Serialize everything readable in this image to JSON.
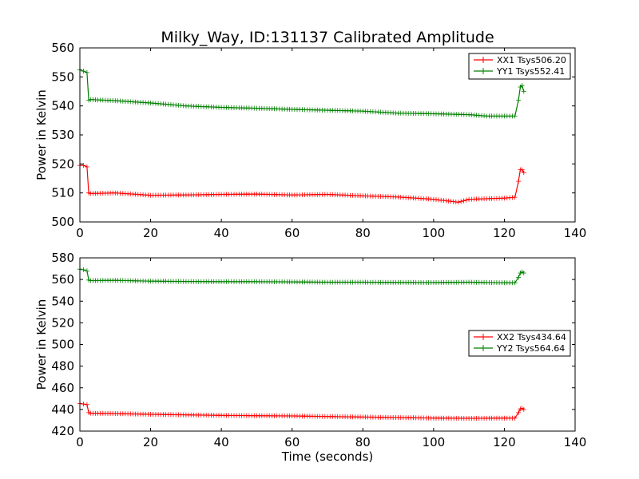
{
  "figure": {
    "title": "Milky_Way, ID:131137 Calibrated Amplitude",
    "xlabel": "Time (seconds)"
  },
  "colors": {
    "xx": "#ff0000",
    "yy": "#008000"
  },
  "chart_data": [
    {
      "type": "line",
      "name": "top",
      "ylabel": "Power in Kelvin",
      "xlim": [
        0,
        140
      ],
      "ylim": [
        500,
        560
      ],
      "xticks": [
        0,
        20,
        40,
        60,
        80,
        100,
        120,
        140
      ],
      "yticks": [
        500,
        510,
        520,
        530,
        540,
        550,
        560
      ],
      "grid": false,
      "legend": "top-right",
      "series": [
        {
          "name": "XX1 Tsys506.20",
          "color": "#ff0000",
          "x": [
            0,
            1,
            2,
            2.5,
            3,
            10,
            20,
            30,
            40,
            50,
            60,
            70,
            80,
            90,
            100,
            107,
            110,
            120,
            123,
            124,
            124.5,
            125,
            125.5
          ],
          "y": [
            519.5,
            519.5,
            519,
            510,
            509.8,
            510,
            509.2,
            509.3,
            509.5,
            509.6,
            509.3,
            509.5,
            509,
            508.6,
            507.8,
            506.8,
            507.8,
            508.2,
            508.5,
            514,
            518,
            518,
            517
          ]
        },
        {
          "name": "YY1 Tsys552.41",
          "color": "#008000",
          "x": [
            0,
            1,
            2,
            2.5,
            3,
            10,
            20,
            30,
            40,
            50,
            60,
            70,
            80,
            90,
            100,
            110,
            115,
            120,
            123,
            124,
            124.5,
            125,
            125.5
          ],
          "y": [
            552.5,
            552,
            551.5,
            542,
            542.2,
            541.8,
            541,
            540,
            539.5,
            539.2,
            538.8,
            538.5,
            538.2,
            537.5,
            537.3,
            537,
            536.5,
            536.5,
            536.5,
            542,
            546.5,
            547,
            545
          ]
        }
      ]
    },
    {
      "type": "line",
      "name": "bottom",
      "ylabel": "Power in Kelvin",
      "xlabel": "Time (seconds)",
      "xlim": [
        0,
        140
      ],
      "ylim": [
        420,
        580
      ],
      "xticks": [
        0,
        20,
        40,
        60,
        80,
        100,
        120,
        140
      ],
      "yticks": [
        420,
        440,
        460,
        480,
        500,
        520,
        540,
        560,
        580
      ],
      "grid": false,
      "legend": "center-right",
      "series": [
        {
          "name": "XX2 Tsys434.64",
          "color": "#ff0000",
          "x": [
            0,
            1,
            2,
            2.5,
            3,
            10,
            20,
            30,
            40,
            50,
            60,
            70,
            80,
            90,
            100,
            110,
            120,
            123,
            124,
            124.5,
            125,
            125.5
          ],
          "y": [
            445.5,
            445,
            444.5,
            437,
            436.5,
            436.2,
            435.5,
            435,
            434.5,
            434.2,
            434,
            433.5,
            433,
            432.5,
            432,
            431.8,
            432,
            432,
            437,
            440.5,
            441,
            440
          ]
        },
        {
          "name": "YY2 Tsys564.64",
          "color": "#008000",
          "x": [
            0,
            1,
            2,
            2.5,
            3,
            10,
            20,
            30,
            40,
            50,
            60,
            70,
            80,
            90,
            100,
            110,
            120,
            123,
            124,
            124.5,
            125,
            125.5
          ],
          "y": [
            569.5,
            569,
            568,
            559.5,
            559,
            559.2,
            558.5,
            558.2,
            558,
            558,
            557.8,
            557.5,
            557.5,
            557.3,
            557.2,
            557.5,
            557,
            557,
            562,
            566,
            567,
            566
          ]
        }
      ]
    }
  ]
}
